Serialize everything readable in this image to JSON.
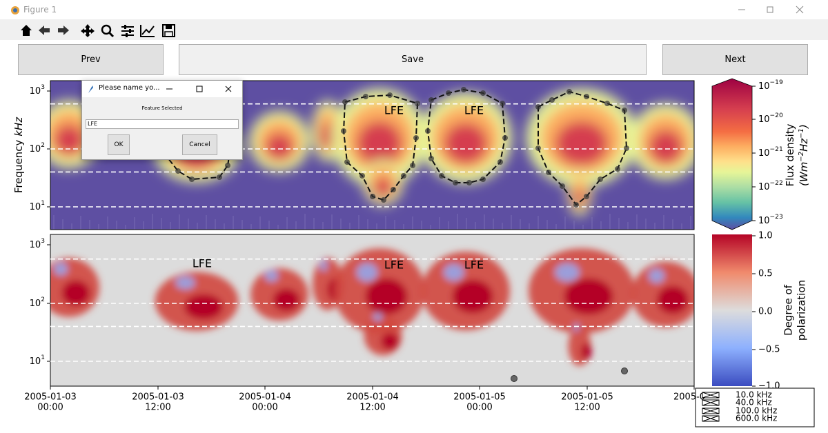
{
  "window": {
    "title": "Figure 1"
  },
  "buttons": {
    "prev": "Prev",
    "save": "Save",
    "next": "Next"
  },
  "dialog": {
    "title": "Please name yo...",
    "prompt": "Feature Selected",
    "input": "LFE",
    "ok": "OK",
    "cancel": "Cancel"
  },
  "y_axis": {
    "label": "Frequency",
    "unit": "kHz",
    "ticks": [
      {
        "base": "10",
        "exp": "3"
      },
      {
        "base": "10",
        "exp": "2"
      },
      {
        "base": "10",
        "exp": "1"
      }
    ]
  },
  "x_axis": {
    "ticks": [
      {
        "date": "2005-01-03",
        "time": "00:00"
      },
      {
        "date": "2005-01-03",
        "time": "12:00"
      },
      {
        "date": "2005-01-04",
        "time": "00:00"
      },
      {
        "date": "2005-01-04",
        "time": "12:00"
      },
      {
        "date": "2005-01-05",
        "time": "00:00"
      },
      {
        "date": "2005-01-05",
        "time": "12:00"
      },
      {
        "date": "2005-0"
      }
    ]
  },
  "flux_colorbar": {
    "label": "Flux density",
    "unit": [
      {
        "t": "(Wm"
      },
      {
        "sup": "−2"
      },
      {
        "t": "Hz"
      },
      {
        "sup": "−1"
      },
      {
        "t": ")"
      }
    ],
    "ticks": [
      {
        "base": "10",
        "exp": "−19"
      },
      {
        "base": "10",
        "exp": "−20"
      },
      {
        "base": "10",
        "exp": "−21"
      },
      {
        "base": "10",
        "exp": "−22"
      },
      {
        "base": "10",
        "exp": "−23"
      }
    ]
  },
  "polarization_colorbar": {
    "label": [
      "Degree of",
      "polarization"
    ],
    "ticks": [
      "1.0",
      "0.5",
      "0.0",
      "−0.5",
      "−1.0"
    ]
  },
  "feature_labels": {
    "top": [
      "LFE",
      "LFE"
    ],
    "bottom": [
      "LFE",
      "LFE",
      "LFE"
    ]
  },
  "legend": [
    "10.0 kHz",
    "40.0 kHz",
    "100.0 kHz",
    "600.0 kHz"
  ]
}
